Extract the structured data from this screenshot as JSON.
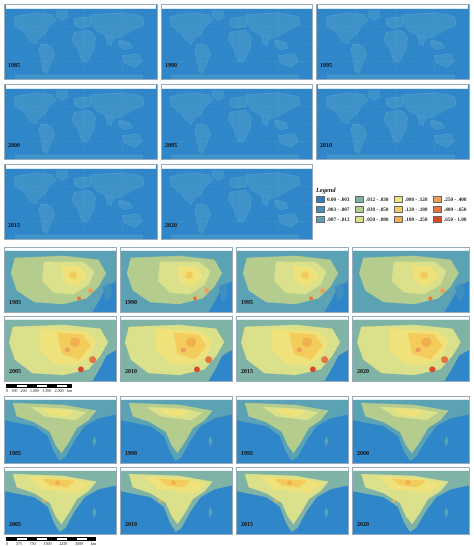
{
  "colors": {
    "ocean": "#2f86c9",
    "land_low": "#3b8fc4",
    "land_mid": "#cfd97a",
    "land_high": "#f2c04a",
    "hot": "#e8663a"
  },
  "world": {
    "years": [
      "1985",
      "1990",
      "1995",
      "2000",
      "2005",
      "2010",
      "2015",
      "2020"
    ]
  },
  "legend": {
    "title": "Legend",
    "items": [
      {
        "label": "0.00 - .003",
        "color": "#2b7fc4"
      },
      {
        "label": ".012 - .030",
        "color": "#7fb3a6"
      },
      {
        "label": ".080 - .120",
        "color": "#f0e27a"
      },
      {
        "label": ".250 - .400",
        "color": "#ec9e5a"
      },
      {
        "label": ".003 - .007",
        "color": "#3f8fbf"
      },
      {
        "label": ".030 - .050",
        "color": "#b4cd8e"
      },
      {
        "label": ".120 - .180",
        "color": "#f3cc5c"
      },
      {
        "label": ".400 - .650",
        "color": "#e67440"
      },
      {
        "label": ".007 - .012",
        "color": "#5aa2b4"
      },
      {
        "label": ".050 - .080",
        "color": "#dbe08a"
      },
      {
        "label": ".180 - .250",
        "color": "#f0b050"
      },
      {
        "label": ".650 - 1.00",
        "color": "#d9482a"
      }
    ]
  },
  "china": {
    "years": [
      "1985",
      "1990",
      "1995",
      "2005",
      "2010",
      "2015",
      "2020"
    ]
  },
  "china_scale": {
    "ticks": [
      "0",
      "100",
      "200",
      "1,000",
      "1,500",
      "2,000"
    ],
    "unit": "km"
  },
  "india": {
    "years": [
      "1985",
      "1990",
      "1995",
      "2000",
      "2005",
      "2010",
      "2015",
      "2020"
    ]
  },
  "india_scale": {
    "ticks": [
      "0",
      "375",
      "750",
      "1500",
      "2250",
      "3000"
    ],
    "unit": "km"
  }
}
